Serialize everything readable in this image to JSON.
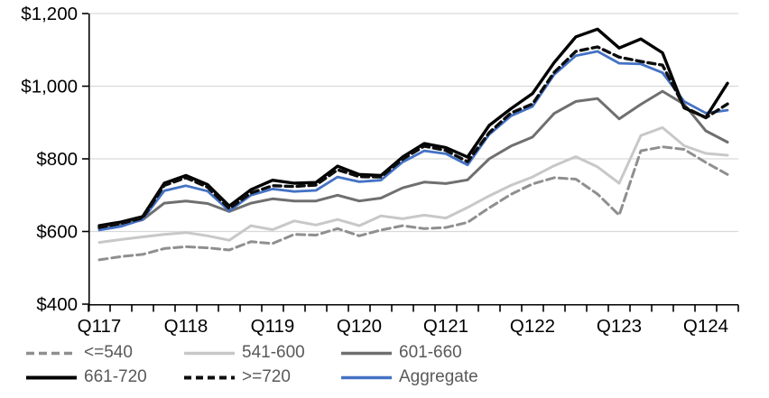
{
  "chart_data": {
    "type": "line",
    "title": "",
    "grid": "horizontal",
    "legend_position": "bottom",
    "colors": {
      "gridline": "#d9d9d9",
      "axis": "#000000",
      "axis_label_text": "#000000",
      "legend_text": "#595959"
    },
    "y_axis": {
      "min": 400,
      "max": 1200,
      "step": 200,
      "tick_values": [
        400,
        600,
        800,
        1000,
        1200
      ],
      "tick_labels": [
        "$400",
        "$600",
        "$800",
        "$1,000",
        "$1,200"
      ]
    },
    "x_axis": {
      "tick_labels": [
        "Q117",
        "Q118",
        "Q119",
        "Q120",
        "Q121",
        "Q122",
        "Q123",
        "Q124"
      ],
      "categories": [
        "Q117",
        "Q217",
        "Q317",
        "Q417",
        "Q118",
        "Q218",
        "Q318",
        "Q418",
        "Q119",
        "Q219",
        "Q319",
        "Q419",
        "Q120",
        "Q220",
        "Q320",
        "Q420",
        "Q121",
        "Q221",
        "Q321",
        "Q421",
        "Q122",
        "Q222",
        "Q322",
        "Q422",
        "Q123",
        "Q223",
        "Q323",
        "Q423",
        "Q124",
        "Q224"
      ]
    },
    "series": [
      {
        "name": "<=540",
        "color": "#8f8f8f",
        "dash": "9 5",
        "width": 3,
        "values": [
          522,
          531,
          537,
          553,
          558,
          555,
          549,
          572,
          567,
          592,
          590,
          608,
          588,
          604,
          616,
          608,
          611,
          625,
          665,
          702,
          731,
          748,
          744,
          703,
          645,
          822,
          833,
          826,
          790,
          757
        ]
      },
      {
        "name": "541-600",
        "color": "#c8c8c8",
        "dash": "",
        "width": 3,
        "values": [
          570,
          578,
          585,
          592,
          597,
          588,
          576,
          616,
          605,
          629,
          618,
          633,
          616,
          643,
          635,
          645,
          637,
          666,
          698,
          727,
          750,
          781,
          806,
          778,
          733,
          864,
          886,
          836,
          815,
          810
        ]
      },
      {
        "name": "601-660",
        "color": "#6f6f6f",
        "dash": "",
        "width": 3,
        "values": [
          608,
          618,
          632,
          678,
          684,
          677,
          655,
          678,
          690,
          684,
          684,
          700,
          684,
          692,
          720,
          736,
          732,
          742,
          800,
          835,
          860,
          925,
          958,
          966,
          910,
          950,
          986,
          950,
          877,
          846
        ]
      },
      {
        "name": "661-720",
        "color": "#000000",
        "dash": "",
        "width": 3.4,
        "values": [
          616,
          626,
          641,
          733,
          754,
          729,
          670,
          715,
          741,
          733,
          735,
          780,
          757,
          754,
          805,
          842,
          831,
          805,
          892,
          938,
          980,
          1065,
          1136,
          1157,
          1105,
          1130,
          1092,
          940,
          914,
          1008
        ]
      },
      {
        "name": ">=720",
        "color": "#0d0d0d",
        "dash": "8 5",
        "width": 3.4,
        "values": [
          611,
          622,
          637,
          727,
          748,
          722,
          663,
          706,
          726,
          724,
          728,
          770,
          751,
          750,
          799,
          835,
          823,
          792,
          872,
          926,
          951,
          1038,
          1096,
          1108,
          1080,
          1068,
          1058,
          943,
          913,
          951
        ]
      },
      {
        "name": "Aggregate",
        "color": "#4472c4",
        "dash": "",
        "width": 2.8,
        "values": [
          604,
          614,
          633,
          712,
          726,
          711,
          657,
          700,
          717,
          710,
          713,
          750,
          737,
          741,
          791,
          822,
          814,
          783,
          867,
          918,
          944,
          1032,
          1084,
          1096,
          1063,
          1061,
          1037,
          958,
          926,
          934
        ]
      }
    ]
  }
}
